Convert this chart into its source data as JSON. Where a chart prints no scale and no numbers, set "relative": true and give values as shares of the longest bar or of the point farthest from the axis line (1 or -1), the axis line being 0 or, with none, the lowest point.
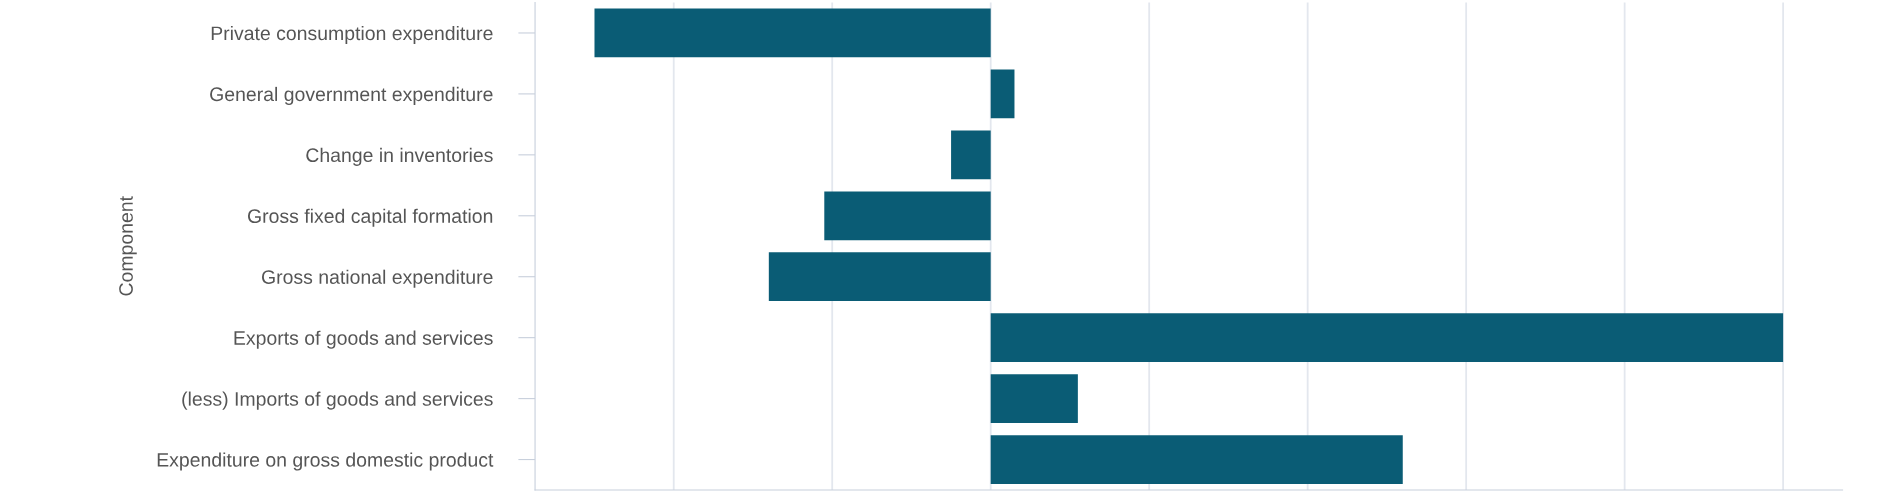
{
  "chart_data": {
    "type": "bar",
    "orientation": "horizontal",
    "relative": true,
    "ylabel": "Component",
    "grid": "x",
    "categories": [
      "Private consumption expenditure",
      "General government expenditure",
      "Change in inventories",
      "Gross fixed capital formation",
      "Gross national expenditure",
      "Exports of goods and services",
      "(less) Imports of goods and services",
      "Expenditure on gross domestic product"
    ],
    "values": [
      -0.5,
      0.03,
      -0.05,
      -0.21,
      -0.28,
      1,
      0.11,
      0.52
    ],
    "color": "#0a5c75"
  }
}
